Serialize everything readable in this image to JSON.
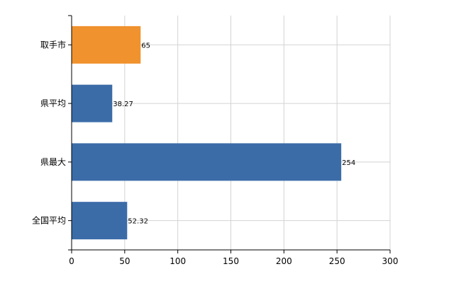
{
  "chart_data": {
    "type": "bar",
    "orientation": "horizontal",
    "categories": [
      "取手市",
      "県平均",
      "県最大",
      "全国平均"
    ],
    "values": [
      65,
      38.27,
      254,
      52.32
    ],
    "data_labels": [
      "65",
      "38.27",
      "254",
      "52.32"
    ],
    "bar_colors": [
      "#F0922E",
      "#3C6CA8",
      "#3C6CA8",
      "#3C6CA8"
    ],
    "xlim": [
      0,
      300
    ],
    "x_ticks": [
      0,
      50,
      100,
      150,
      200,
      250,
      300
    ],
    "x_tick_labels": [
      "0",
      "50",
      "100",
      "150",
      "200",
      "250",
      "300"
    ],
    "grid": true,
    "grid_color": "#d3d3d3",
    "title": "",
    "xlabel": "",
    "ylabel": ""
  }
}
